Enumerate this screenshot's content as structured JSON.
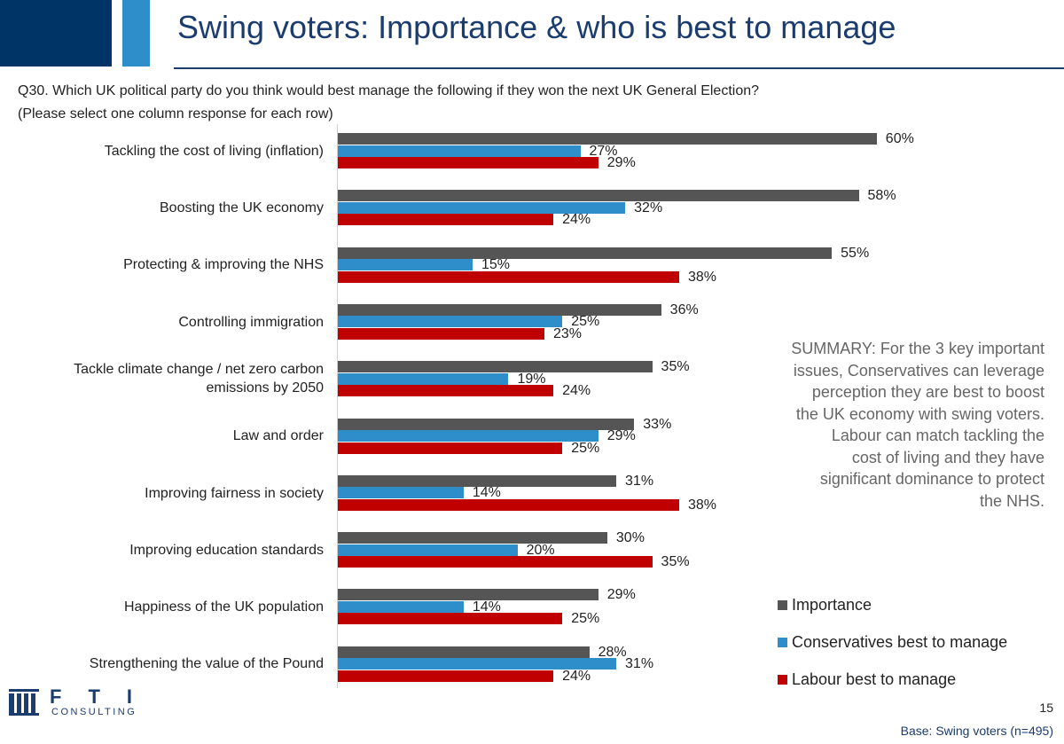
{
  "header": {
    "title": "Swing voters: Importance & who is best to manage"
  },
  "question": {
    "line1": "Q30. Which UK political party do you think would best manage the following if they won the next UK General Election?",
    "line2": "(Please select one column response for each row)"
  },
  "chart_data": {
    "type": "bar",
    "orientation": "horizontal",
    "categories": [
      "Tackling the cost of living (inflation)",
      "Boosting the UK economy",
      "Protecting & improving the NHS",
      "Controlling immigration",
      "Tackle climate change / net zero carbon emissions by 2050",
      "Law and order",
      "Improving fairness in society",
      "Improving education standards",
      "Happiness of the UK population",
      "Strengthening the value of the Pound"
    ],
    "category_lines": [
      [
        "Tackling the cost of living (inflation)"
      ],
      [
        "Boosting the UK economy"
      ],
      [
        "Protecting & improving the NHS"
      ],
      [
        "Controlling immigration"
      ],
      [
        "Tackle climate change / net zero carbon",
        "emissions by 2050"
      ],
      [
        "Law and order"
      ],
      [
        "Improving fairness in society"
      ],
      [
        "Improving education standards"
      ],
      [
        "Happiness of the UK population"
      ],
      [
        "Strengthening the value of the Pound"
      ]
    ],
    "series": [
      {
        "name": "Importance",
        "color": "#555555",
        "values": [
          60,
          58,
          55,
          36,
          35,
          33,
          31,
          30,
          29,
          28
        ]
      },
      {
        "name": "Conservatives best to manage",
        "color": "#2e8ec9",
        "values": [
          27,
          32,
          15,
          25,
          19,
          29,
          14,
          20,
          14,
          31
        ]
      },
      {
        "name": "Labour best to manage",
        "color": "#c00000",
        "values": [
          29,
          24,
          38,
          23,
          24,
          25,
          38,
          35,
          25,
          24
        ]
      }
    ],
    "value_suffix": "%",
    "legend_position": "bottom-right",
    "grid": false
  },
  "summary": {
    "lines": [
      "SUMMARY: For the 3 key important",
      "issues, Conservatives can leverage",
      "perception they are best to boost",
      "the UK economy with swing voters.",
      "Labour can match tackling the",
      "cost of living and they have",
      "significant dominance to protect",
      "the NHS."
    ]
  },
  "logo": {
    "text_main": "FTI",
    "text_sub": "CONSULTING"
  },
  "footer": {
    "page_number": "15",
    "base": "Base: Swing voters (n=495)"
  }
}
